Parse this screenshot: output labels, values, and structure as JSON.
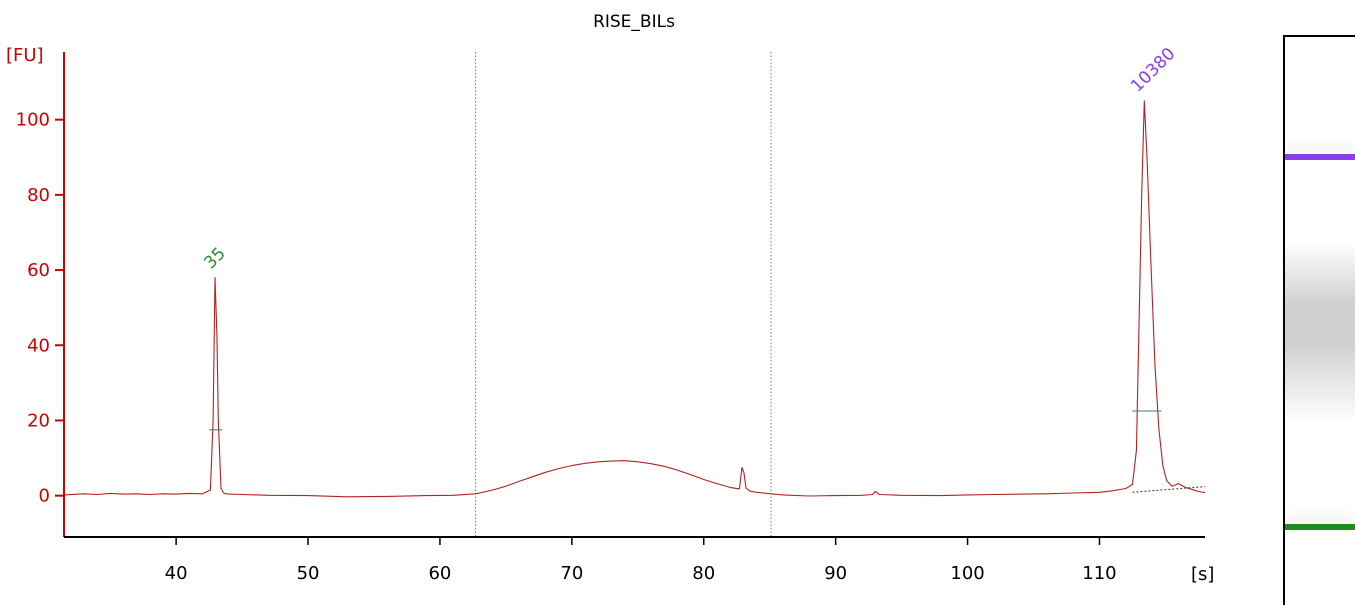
{
  "chart_data": {
    "type": "line",
    "title": "RISE_BILs",
    "ylabel": "[FU]",
    "xlabel": "[s]",
    "xlim": [
      31.5,
      118
    ],
    "ylim": [
      -11,
      118
    ],
    "xticks": [
      40,
      50,
      60,
      70,
      80,
      90,
      100,
      110
    ],
    "yticks": [
      0,
      20,
      40,
      60,
      80,
      100
    ],
    "grid": false,
    "region_markers_x": [
      62.7,
      85.1
    ],
    "series": [
      {
        "color": "#b22222",
        "x": [
          31.5,
          33,
          34,
          35,
          36,
          37,
          38,
          39,
          40,
          41,
          42,
          42.6,
          42.8,
          42.95,
          43.1,
          43.2,
          43.4,
          43.6,
          43.8,
          44,
          45,
          47,
          50,
          53,
          56,
          59,
          61,
          62.7,
          64,
          65,
          66,
          67,
          68,
          69,
          70,
          71,
          72,
          73,
          74,
          75,
          76,
          77,
          78,
          79,
          80,
          81,
          82,
          82.7,
          82.9,
          83.05,
          83.2,
          83.5,
          84,
          85.1,
          86,
          88,
          90,
          92,
          92.8,
          93,
          93.3,
          95,
          98,
          100,
          102,
          104,
          106,
          108,
          110,
          111,
          112,
          112.5,
          112.8,
          113.0,
          113.2,
          113.4,
          113.6,
          113.9,
          114.2,
          114.5,
          114.8,
          115.1,
          115.5,
          116,
          116.5,
          117,
          117.5,
          118
        ],
        "y": [
          0.2,
          0.5,
          0.3,
          0.6,
          0.4,
          0.5,
          0.3,
          0.5,
          0.4,
          0.6,
          0.5,
          1.5,
          20,
          58,
          42,
          20,
          2,
          0.7,
          0.5,
          0.4,
          0.3,
          0.1,
          0,
          -0.3,
          -0.2,
          0,
          0.1,
          0.5,
          1.5,
          2.5,
          3.8,
          5,
          6.2,
          7.2,
          8,
          8.6,
          9,
          9.2,
          9.3,
          9,
          8.5,
          7.8,
          6.8,
          5.6,
          4.3,
          3.2,
          2.2,
          1.8,
          7.5,
          6,
          2,
          1.2,
          0.9,
          0.5,
          0.2,
          -0.1,
          0,
          0.1,
          0.3,
          1.1,
          0.3,
          0.1,
          0,
          0.2,
          0.3,
          0.4,
          0.5,
          0.7,
          0.9,
          1.3,
          1.9,
          3,
          12,
          45,
          80,
          105,
          90,
          62,
          35,
          18,
          8,
          4,
          2.5,
          3.2,
          2.2,
          1.7,
          1.1,
          0.8
        ]
      }
    ],
    "peak_labels": [
      {
        "text": "35",
        "x": 42.95,
        "y": 58,
        "color": "#2e8b2e",
        "rotation": -45
      },
      {
        "text": "10380",
        "x": 113.2,
        "y": 105,
        "color": "#8a3ee6",
        "rotation": -45
      }
    ],
    "peak_width_markers": [
      {
        "x_from": 42.5,
        "x_to": 43.5,
        "y": 17.5,
        "color": "#3a7a5a"
      },
      {
        "x_from": 112.5,
        "x_to": 114.7,
        "y": 22.5,
        "color": "#3a7a5a"
      }
    ],
    "baseline_segments": [
      {
        "x_from": 112.5,
        "x_to": 118,
        "y_from": 0.9,
        "y_to": 2.4
      }
    ]
  },
  "gel_image": {
    "bands": [
      {
        "role": "upper-marker",
        "color": "#8a3ee6",
        "position": 0.21
      },
      {
        "role": "smear",
        "color": "#cfcfcf",
        "position": 0.52
      },
      {
        "role": "lower-marker",
        "color": "#1e8c1e",
        "position": 0.86
      }
    ]
  },
  "colors": {
    "axis": "#cc0000",
    "trace": "#b22222",
    "region_marker": "#777777",
    "frame": "#000000"
  }
}
